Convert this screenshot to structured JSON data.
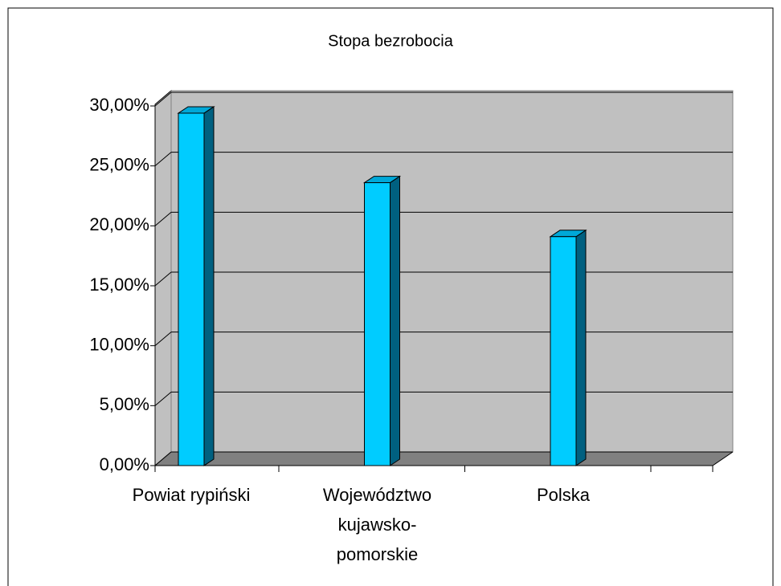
{
  "chart_data": {
    "type": "bar",
    "title": "Stopa bezrobocia",
    "categories": [
      "Powiat rypiński",
      "Województwo kujawsko-pomorskie",
      "Polska"
    ],
    "values": [
      29.4,
      23.6,
      19.1
    ],
    "color": "#00ccff",
    "ylim": [
      0,
      30
    ],
    "yticks": [
      {
        "value": 0,
        "label": "0,00%"
      },
      {
        "value": 5,
        "label": "5,00%"
      },
      {
        "value": 10,
        "label": "10,00%"
      },
      {
        "value": 15,
        "label": "15,00%"
      },
      {
        "value": 20,
        "label": "20,00%"
      },
      {
        "value": 25,
        "label": "25,00%"
      },
      {
        "value": 30,
        "label": "30,00%"
      }
    ],
    "grid": true
  }
}
